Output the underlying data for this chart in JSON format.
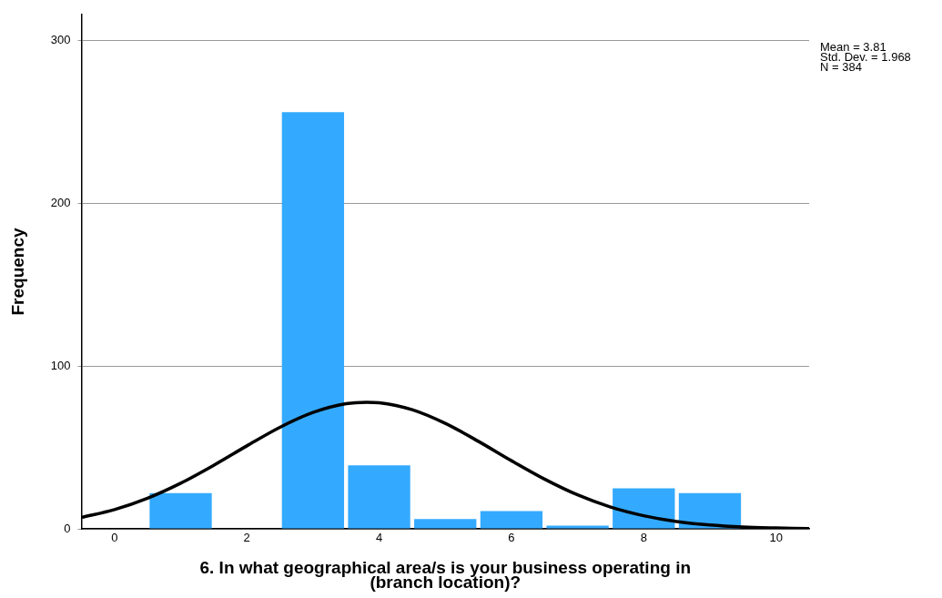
{
  "chart_data": {
    "type": "histogram",
    "xlabel": "6. In what geographical area/s is your business operating in (branch location)?",
    "ylabel": "Frequency",
    "bins": [
      0.5,
      1.5,
      2.5,
      3.5,
      4.5,
      5.5,
      6.5,
      7.5,
      8.5,
      9.5
    ],
    "series": [
      {
        "type": "histogram",
        "color": "#33aaff",
        "values": [
          22,
          0,
          256,
          39,
          6,
          11,
          2,
          25,
          22
        ]
      },
      {
        "type": "line",
        "color": "#000000",
        "x": [
          -0.5,
          0,
          0.5,
          1,
          1.5,
          2,
          2.5,
          3,
          3.5,
          3.81,
          4,
          4.5,
          5,
          5.5,
          6,
          6.5,
          7,
          7.5,
          8,
          8.5,
          9,
          9.5,
          10,
          10.5
        ],
        "values": [
          7.1,
          11.9,
          18.9,
          28.1,
          39.1,
          51.0,
          62.4,
          71.5,
          76.9,
          77.8,
          77.5,
          73.2,
          64.8,
          53.8,
          41.9,
          30.6,
          20.9,
          13.4,
          8.1,
          4.5,
          2.4,
          1.2,
          0.6,
          0.2
        ]
      }
    ],
    "xlim": [
      -0.5,
      10.5
    ],
    "xticks": [
      0,
      2,
      4,
      6,
      8,
      10
    ],
    "ylim": [
      0,
      316
    ],
    "yticks": [
      0,
      100,
      200,
      300
    ],
    "grid": "y",
    "legend": false,
    "marker": "none",
    "line_style": "solid",
    "annotations": [
      "Mean = 3.81",
      "Std. Dev. = 1.968",
      "N = 384"
    ]
  }
}
